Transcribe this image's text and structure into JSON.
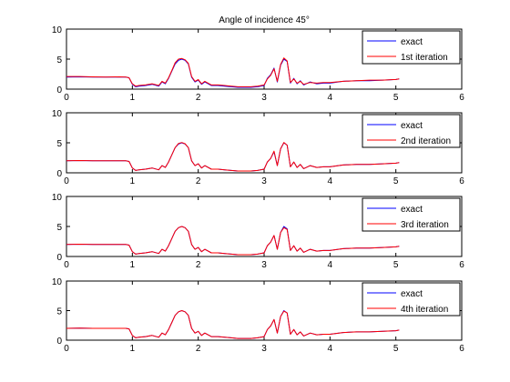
{
  "chart_data": [
    {
      "type": "line",
      "title": "Angle of incidence 45°",
      "xlim": [
        0,
        6
      ],
      "ylim": [
        0,
        10
      ],
      "xticks": [
        "0",
        "1",
        "2",
        "3",
        "4",
        "5",
        "6"
      ],
      "yticks": [
        "0",
        "5",
        "10"
      ],
      "grid": false,
      "legend_position": "top-right",
      "series": [
        {
          "name": "exact",
          "color": "#0000ff",
          "x": [
            0,
            0.2,
            0.4,
            0.6,
            0.8,
            0.9,
            0.95,
            1.0,
            1.05,
            1.1,
            1.2,
            1.3,
            1.4,
            1.45,
            1.5,
            1.55,
            1.6,
            1.65,
            1.7,
            1.75,
            1.8,
            1.85,
            1.9,
            1.95,
            2.0,
            2.05,
            2.1,
            2.2,
            2.3,
            2.4,
            2.5,
            2.6,
            2.7,
            2.8,
            2.9,
            3.0,
            3.05,
            3.1,
            3.15,
            3.2,
            3.25,
            3.3,
            3.35,
            3.4,
            3.45,
            3.5,
            3.55,
            3.6,
            3.7,
            3.8,
            3.9,
            4.0,
            4.2,
            4.4,
            4.6,
            4.8,
            5.0,
            5.05
          ],
          "y": [
            2.0,
            2.05,
            2.0,
            2.0,
            2.0,
            2.0,
            1.9,
            0.8,
            0.4,
            0.5,
            0.6,
            0.8,
            0.5,
            1.2,
            0.9,
            1.8,
            3.0,
            4.2,
            4.8,
            5.0,
            4.8,
            4.2,
            2.0,
            1.2,
            1.5,
            0.8,
            1.2,
            0.6,
            0.6,
            0.5,
            0.4,
            0.3,
            0.3,
            0.3,
            0.4,
            0.6,
            1.8,
            2.4,
            3.5,
            1.2,
            4.0,
            5.0,
            4.6,
            1.0,
            1.8,
            0.9,
            1.4,
            0.7,
            1.2,
            0.9,
            1.0,
            1.0,
            1.3,
            1.4,
            1.4,
            1.5,
            1.6,
            1.7
          ]
        },
        {
          "name": "1st iteration",
          "color": "#ff0000",
          "x": [
            0,
            0.2,
            0.4,
            0.6,
            0.8,
            0.9,
            0.95,
            1.0,
            1.05,
            1.1,
            1.2,
            1.3,
            1.4,
            1.45,
            1.5,
            1.55,
            1.6,
            1.65,
            1.7,
            1.75,
            1.8,
            1.85,
            1.9,
            1.95,
            2.0,
            2.05,
            2.1,
            2.2,
            2.3,
            2.4,
            2.5,
            2.6,
            2.7,
            2.8,
            2.9,
            3.0,
            3.05,
            3.1,
            3.15,
            3.2,
            3.25,
            3.3,
            3.35,
            3.4,
            3.45,
            3.5,
            3.55,
            3.6,
            3.7,
            3.8,
            3.9,
            4.0,
            4.2,
            4.4,
            4.6,
            4.8,
            5.0,
            5.05
          ],
          "y": [
            2.1,
            2.1,
            2.05,
            2.0,
            2.05,
            2.0,
            1.9,
            0.9,
            0.5,
            0.6,
            0.7,
            0.9,
            0.6,
            1.3,
            1.0,
            1.9,
            3.1,
            4.4,
            5.0,
            5.1,
            4.9,
            4.3,
            2.1,
            1.3,
            1.6,
            0.9,
            1.3,
            0.7,
            0.7,
            0.6,
            0.5,
            0.4,
            0.4,
            0.4,
            0.5,
            0.7,
            1.7,
            2.3,
            3.4,
            1.3,
            4.1,
            5.2,
            4.7,
            1.1,
            1.7,
            1.0,
            1.3,
            0.8,
            1.1,
            1.0,
            1.1,
            1.1,
            1.3,
            1.4,
            1.5,
            1.5,
            1.6,
            1.7
          ]
        }
      ]
    },
    {
      "type": "line",
      "xlim": [
        0,
        6
      ],
      "ylim": [
        0,
        10
      ],
      "xticks": [
        "0",
        "1",
        "2",
        "3",
        "4",
        "5",
        "6"
      ],
      "yticks": [
        "0",
        "5",
        "10"
      ],
      "grid": false,
      "legend_position": "top-right",
      "series": [
        {
          "name": "exact",
          "color": "#0000ff",
          "x": [
            0,
            0.2,
            0.4,
            0.6,
            0.8,
            0.9,
            0.95,
            1.0,
            1.05,
            1.1,
            1.2,
            1.3,
            1.4,
            1.45,
            1.5,
            1.55,
            1.6,
            1.65,
            1.7,
            1.75,
            1.8,
            1.85,
            1.9,
            1.95,
            2.0,
            2.05,
            2.1,
            2.2,
            2.3,
            2.4,
            2.5,
            2.6,
            2.7,
            2.8,
            2.9,
            3.0,
            3.05,
            3.1,
            3.15,
            3.2,
            3.25,
            3.3,
            3.35,
            3.4,
            3.45,
            3.5,
            3.55,
            3.6,
            3.7,
            3.8,
            3.9,
            4.0,
            4.2,
            4.4,
            4.6,
            4.8,
            5.0,
            5.05
          ],
          "y": [
            2.0,
            2.05,
            2.0,
            2.0,
            2.0,
            2.0,
            1.9,
            0.8,
            0.4,
            0.5,
            0.6,
            0.8,
            0.5,
            1.2,
            0.9,
            1.8,
            3.0,
            4.2,
            4.8,
            5.0,
            4.8,
            4.2,
            2.0,
            1.2,
            1.5,
            0.8,
            1.2,
            0.6,
            0.6,
            0.5,
            0.4,
            0.3,
            0.3,
            0.3,
            0.4,
            0.6,
            1.8,
            2.4,
            3.5,
            1.2,
            4.0,
            5.0,
            4.6,
            1.0,
            1.8,
            0.9,
            1.4,
            0.7,
            1.2,
            0.9,
            1.0,
            1.0,
            1.3,
            1.4,
            1.4,
            1.5,
            1.6,
            1.7
          ]
        },
        {
          "name": "2nd iteration",
          "color": "#ff0000",
          "x": [
            0,
            0.2,
            0.4,
            0.6,
            0.8,
            0.9,
            0.95,
            1.0,
            1.05,
            1.1,
            1.2,
            1.3,
            1.4,
            1.45,
            1.5,
            1.55,
            1.6,
            1.65,
            1.7,
            1.75,
            1.8,
            1.85,
            1.9,
            1.95,
            2.0,
            2.05,
            2.1,
            2.2,
            2.3,
            2.4,
            2.5,
            2.6,
            2.7,
            2.8,
            2.9,
            3.0,
            3.05,
            3.1,
            3.15,
            3.2,
            3.25,
            3.3,
            3.35,
            3.4,
            3.45,
            3.5,
            3.55,
            3.6,
            3.7,
            3.8,
            3.9,
            4.0,
            4.2,
            4.4,
            4.6,
            4.8,
            5.0,
            5.05
          ],
          "y": [
            2.0,
            2.05,
            2.0,
            2.0,
            2.0,
            2.0,
            1.9,
            0.8,
            0.4,
            0.5,
            0.6,
            0.8,
            0.5,
            1.2,
            0.9,
            1.8,
            3.0,
            4.2,
            4.9,
            5.05,
            4.85,
            4.2,
            2.0,
            1.2,
            1.5,
            0.8,
            1.2,
            0.6,
            0.6,
            0.5,
            0.4,
            0.3,
            0.3,
            0.3,
            0.4,
            0.6,
            1.8,
            2.4,
            3.6,
            1.2,
            4.0,
            5.05,
            4.6,
            1.0,
            1.8,
            0.9,
            1.4,
            0.7,
            1.2,
            0.9,
            1.0,
            1.0,
            1.3,
            1.4,
            1.4,
            1.5,
            1.6,
            1.7
          ]
        }
      ]
    },
    {
      "type": "line",
      "xlim": [
        0,
        6
      ],
      "ylim": [
        0,
        10
      ],
      "xticks": [
        "0",
        "1",
        "2",
        "3",
        "4",
        "5",
        "6"
      ],
      "yticks": [
        "0",
        "5",
        "10"
      ],
      "grid": false,
      "legend_position": "top-right",
      "series": [
        {
          "name": "exact",
          "color": "#0000ff",
          "x": [
            0,
            0.2,
            0.4,
            0.6,
            0.8,
            0.9,
            0.95,
            1.0,
            1.05,
            1.1,
            1.2,
            1.3,
            1.4,
            1.45,
            1.5,
            1.55,
            1.6,
            1.65,
            1.7,
            1.75,
            1.8,
            1.85,
            1.9,
            1.95,
            2.0,
            2.05,
            2.1,
            2.2,
            2.3,
            2.4,
            2.5,
            2.6,
            2.7,
            2.8,
            2.9,
            3.0,
            3.05,
            3.1,
            3.15,
            3.2,
            3.25,
            3.3,
            3.35,
            3.4,
            3.45,
            3.5,
            3.55,
            3.6,
            3.7,
            3.8,
            3.9,
            4.0,
            4.2,
            4.4,
            4.6,
            4.8,
            5.0,
            5.05
          ],
          "y": [
            2.0,
            2.05,
            2.0,
            2.0,
            2.0,
            2.0,
            1.9,
            0.8,
            0.4,
            0.5,
            0.6,
            0.8,
            0.5,
            1.2,
            0.9,
            1.8,
            3.0,
            4.2,
            4.8,
            5.0,
            4.8,
            4.2,
            2.0,
            1.2,
            1.5,
            0.8,
            1.2,
            0.6,
            0.6,
            0.5,
            0.4,
            0.3,
            0.3,
            0.3,
            0.4,
            0.6,
            1.8,
            2.4,
            3.5,
            1.2,
            4.0,
            5.0,
            4.6,
            1.0,
            1.8,
            0.9,
            1.4,
            0.7,
            1.2,
            0.9,
            1.0,
            1.0,
            1.3,
            1.4,
            1.4,
            1.5,
            1.6,
            1.7
          ]
        },
        {
          "name": "3rd iteration",
          "color": "#ff0000",
          "x": [
            0,
            0.2,
            0.4,
            0.6,
            0.8,
            0.9,
            0.95,
            1.0,
            1.05,
            1.1,
            1.2,
            1.3,
            1.4,
            1.45,
            1.5,
            1.55,
            1.6,
            1.65,
            1.7,
            1.75,
            1.8,
            1.85,
            1.9,
            1.95,
            2.0,
            2.05,
            2.1,
            2.2,
            2.3,
            2.4,
            2.5,
            2.6,
            2.7,
            2.8,
            2.9,
            3.0,
            3.05,
            3.1,
            3.15,
            3.2,
            3.25,
            3.3,
            3.35,
            3.4,
            3.45,
            3.5,
            3.55,
            3.6,
            3.7,
            3.8,
            3.9,
            4.0,
            4.2,
            4.4,
            4.6,
            4.8,
            5.0,
            5.05
          ],
          "y": [
            2.0,
            2.05,
            2.0,
            2.0,
            2.0,
            2.0,
            1.9,
            0.8,
            0.4,
            0.5,
            0.6,
            0.8,
            0.5,
            1.2,
            0.9,
            1.8,
            3.0,
            4.2,
            4.8,
            5.0,
            4.8,
            4.2,
            2.0,
            1.2,
            1.5,
            0.8,
            1.2,
            0.6,
            0.6,
            0.5,
            0.4,
            0.3,
            0.3,
            0.3,
            0.4,
            0.6,
            1.8,
            2.4,
            3.5,
            1.2,
            4.0,
            4.8,
            4.5,
            1.0,
            1.8,
            0.9,
            1.4,
            0.7,
            1.2,
            0.9,
            1.0,
            1.0,
            1.3,
            1.4,
            1.4,
            1.5,
            1.6,
            1.7
          ]
        }
      ]
    },
    {
      "type": "line",
      "xlim": [
        0,
        6
      ],
      "ylim": [
        0,
        10
      ],
      "xticks": [
        "0",
        "1",
        "2",
        "3",
        "4",
        "5",
        "6"
      ],
      "yticks": [
        "0",
        "5",
        "10"
      ],
      "grid": false,
      "legend_position": "top-right",
      "series": [
        {
          "name": "exact",
          "color": "#0000ff",
          "x": [
            0,
            0.2,
            0.4,
            0.6,
            0.8,
            0.9,
            0.95,
            1.0,
            1.05,
            1.1,
            1.2,
            1.3,
            1.4,
            1.45,
            1.5,
            1.55,
            1.6,
            1.65,
            1.7,
            1.75,
            1.8,
            1.85,
            1.9,
            1.95,
            2.0,
            2.05,
            2.1,
            2.2,
            2.3,
            2.4,
            2.5,
            2.6,
            2.7,
            2.8,
            2.9,
            3.0,
            3.05,
            3.1,
            3.15,
            3.2,
            3.25,
            3.3,
            3.35,
            3.4,
            3.45,
            3.5,
            3.55,
            3.6,
            3.7,
            3.8,
            3.9,
            4.0,
            4.2,
            4.4,
            4.6,
            4.8,
            5.0,
            5.05
          ],
          "y": [
            2.0,
            2.05,
            2.0,
            2.0,
            2.0,
            2.0,
            1.9,
            0.8,
            0.4,
            0.5,
            0.6,
            0.8,
            0.5,
            1.2,
            0.9,
            1.8,
            3.0,
            4.2,
            4.8,
            5.0,
            4.8,
            4.2,
            2.0,
            1.2,
            1.5,
            0.8,
            1.2,
            0.6,
            0.6,
            0.5,
            0.4,
            0.3,
            0.3,
            0.3,
            0.4,
            0.6,
            1.8,
            2.4,
            3.5,
            1.2,
            4.0,
            5.0,
            4.6,
            1.0,
            1.8,
            0.9,
            1.4,
            0.7,
            1.2,
            0.9,
            1.0,
            1.0,
            1.3,
            1.4,
            1.4,
            1.5,
            1.6,
            1.7
          ]
        },
        {
          "name": "4th iteration",
          "color": "#ff0000",
          "x": [
            0,
            0.2,
            0.4,
            0.6,
            0.8,
            0.9,
            0.95,
            1.0,
            1.05,
            1.1,
            1.2,
            1.3,
            1.4,
            1.45,
            1.5,
            1.55,
            1.6,
            1.65,
            1.7,
            1.75,
            1.8,
            1.85,
            1.9,
            1.95,
            2.0,
            2.05,
            2.1,
            2.2,
            2.3,
            2.4,
            2.5,
            2.6,
            2.7,
            2.8,
            2.9,
            3.0,
            3.05,
            3.1,
            3.15,
            3.2,
            3.25,
            3.3,
            3.35,
            3.4,
            3.45,
            3.5,
            3.55,
            3.6,
            3.7,
            3.8,
            3.9,
            4.0,
            4.2,
            4.4,
            4.6,
            4.8,
            5.0,
            5.05
          ],
          "y": [
            2.0,
            2.05,
            2.0,
            2.0,
            2.0,
            2.0,
            1.9,
            0.8,
            0.4,
            0.5,
            0.6,
            0.8,
            0.5,
            1.2,
            0.9,
            1.8,
            3.0,
            4.2,
            4.8,
            5.0,
            4.8,
            4.2,
            2.0,
            1.2,
            1.5,
            0.8,
            1.2,
            0.6,
            0.6,
            0.5,
            0.4,
            0.3,
            0.3,
            0.3,
            0.4,
            0.6,
            1.8,
            2.4,
            3.5,
            1.2,
            4.0,
            4.9,
            4.6,
            1.0,
            1.8,
            0.9,
            1.4,
            0.7,
            1.2,
            0.9,
            1.0,
            1.0,
            1.3,
            1.4,
            1.4,
            1.5,
            1.6,
            1.7
          ]
        }
      ]
    }
  ]
}
